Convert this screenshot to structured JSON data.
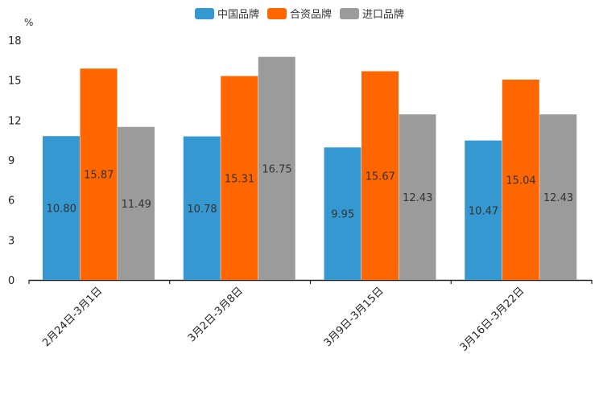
{
  "chart_data": {
    "type": "bar",
    "title": "",
    "ylabel": "%",
    "xlabel": "",
    "ylim": [
      0,
      18
    ],
    "yticks": [
      0,
      3,
      6,
      9,
      12,
      15,
      18
    ],
    "categories": [
      "2月24日-3月1日",
      "3月2日-3月8日",
      "3月9日-3月15日",
      "3月16日-3月22日"
    ],
    "series": [
      {
        "name": "中国品牌",
        "color": "#3598D0",
        "values": [
          10.8,
          10.78,
          9.95,
          10.47
        ],
        "labels": [
          "10.80",
          "10.78",
          "9.95",
          "10.47"
        ]
      },
      {
        "name": "合资品牌",
        "color": "#FF6600",
        "values": [
          15.87,
          15.31,
          15.67,
          15.04
        ],
        "labels": [
          "15.87",
          "15.31",
          "15.67",
          "15.04"
        ]
      },
      {
        "name": "进口品牌",
        "color": "#9B9B9B",
        "values": [
          11.49,
          16.75,
          12.43,
          12.43
        ],
        "labels": [
          "11.49",
          "16.75",
          "12.43",
          "12.43"
        ]
      }
    ],
    "legend_position": "top-center",
    "grid": false
  }
}
